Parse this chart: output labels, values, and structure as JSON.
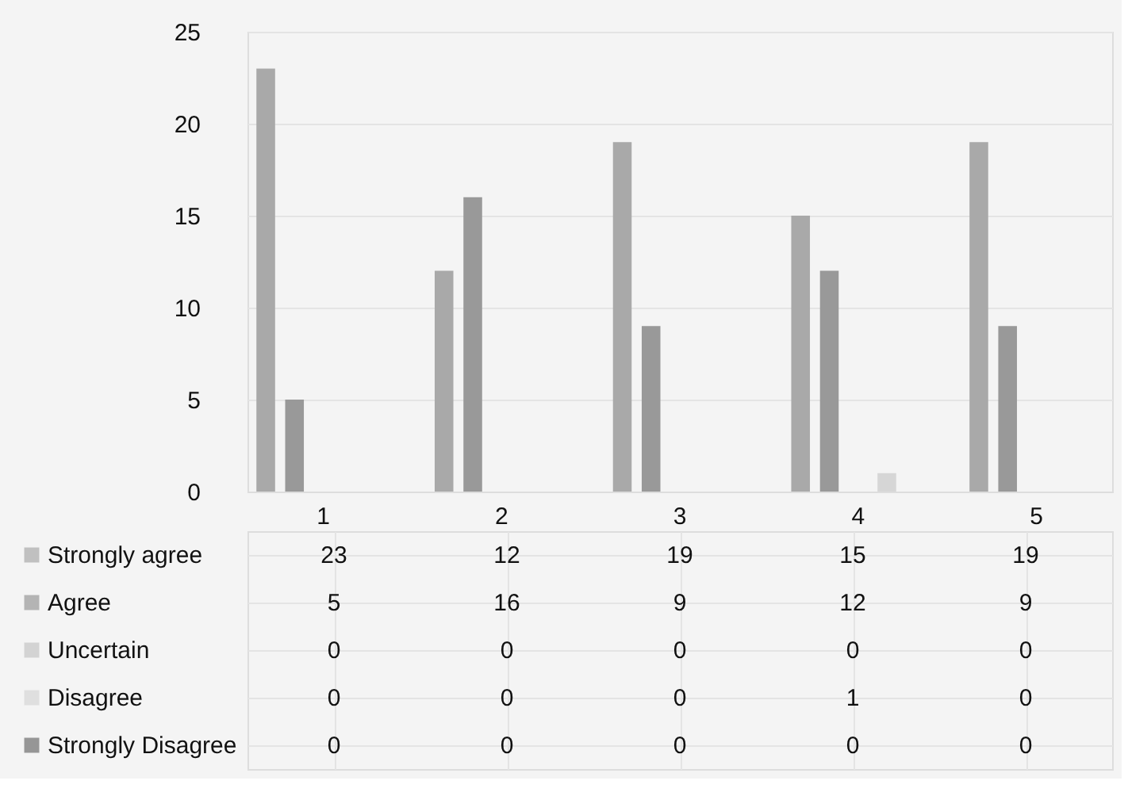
{
  "chart_data": {
    "type": "bar",
    "categories": [
      "1",
      "2",
      "3",
      "4",
      "5"
    ],
    "series": [
      {
        "name": "Strongly agree",
        "color": "#a9a9a9",
        "values": [
          23,
          12,
          19,
          15,
          19
        ]
      },
      {
        "name": "Agree",
        "color": "#999999",
        "values": [
          5,
          16,
          9,
          12,
          9
        ]
      },
      {
        "name": "Uncertain",
        "color": "#c4c4c4",
        "values": [
          0,
          0,
          0,
          0,
          0
        ]
      },
      {
        "name": "Disagree",
        "color": "#d6d6d6",
        "values": [
          0,
          0,
          0,
          1,
          0
        ]
      },
      {
        "name": "Strongly Disagree",
        "color": "#6e6e6e",
        "values": [
          0,
          0,
          0,
          0,
          0
        ]
      }
    ],
    "ylim": [
      0,
      25
    ],
    "yticks": [
      0,
      5,
      10,
      15,
      20,
      25
    ],
    "grid": "y",
    "legend": "bottom",
    "data_labels": true
  }
}
